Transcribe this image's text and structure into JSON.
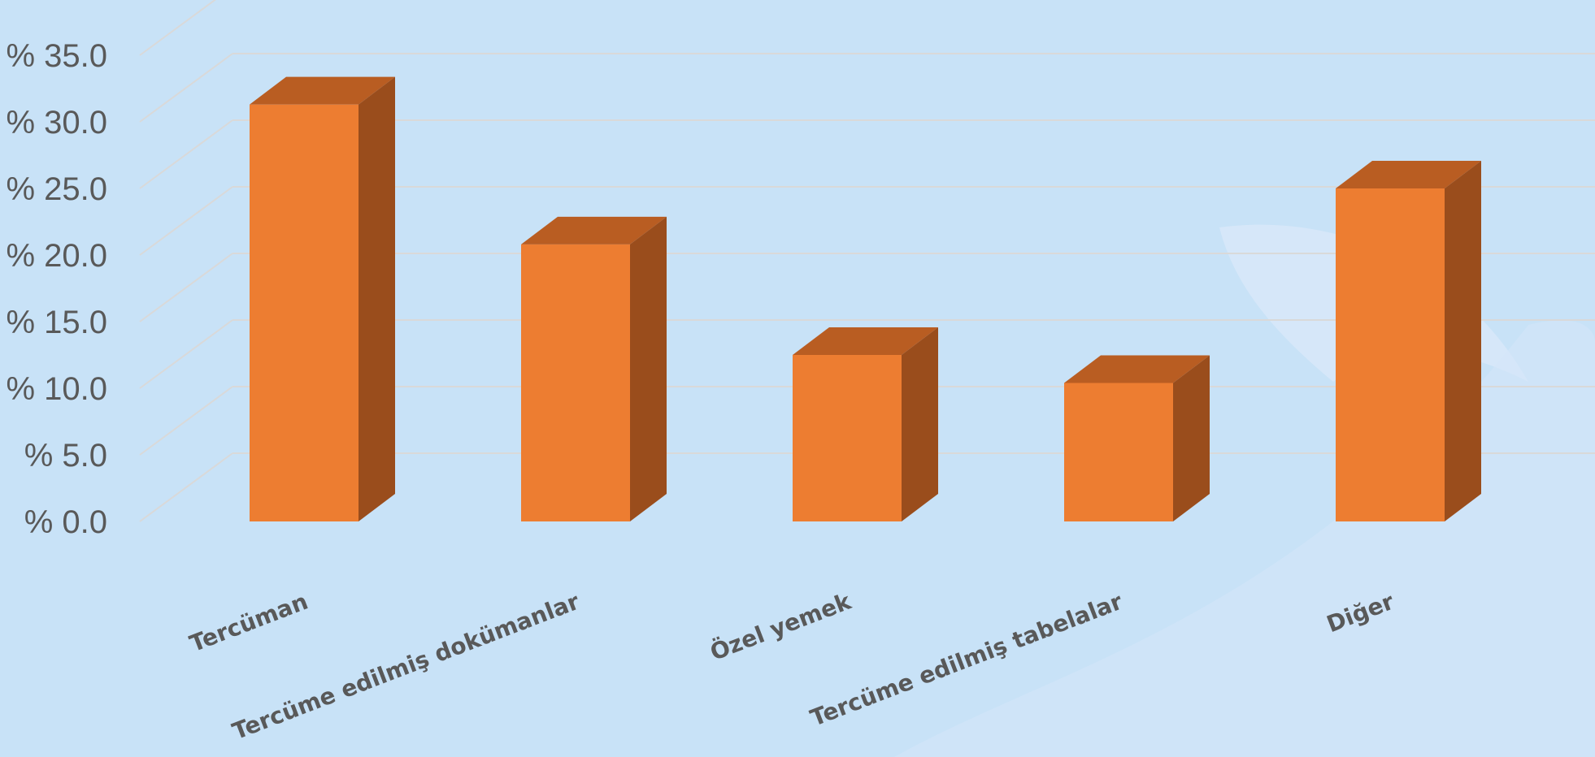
{
  "chart_data": {
    "type": "bar",
    "categories": [
      "Tercüman",
      "Tercüme edilmiş dokümanlar",
      "Özel yemek",
      "Tercüme edilmiş tabelalar",
      "Diğer"
    ],
    "values": [
      31.3,
      20.8,
      12.5,
      10.4,
      25.0
    ],
    "ylim": [
      0,
      35
    ],
    "yticks": [
      "% 0.0",
      "% 5.0",
      "% 10.0",
      "% 15.0",
      "% 20.0",
      "% 25.0",
      "% 30.0",
      "% 35.0"
    ],
    "grid": true,
    "legend": "none",
    "colors": {
      "front": "#ed7d31",
      "top": "#b95d22",
      "side": "#9a4d1c",
      "grid": "#d9d9d9",
      "background": "#c8e2f7"
    }
  }
}
